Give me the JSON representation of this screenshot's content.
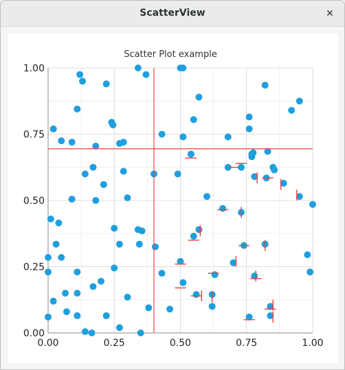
{
  "window": {
    "title": "ScatterView",
    "close_icon": "close-icon"
  },
  "chart_data": {
    "type": "scatter",
    "title": "Scatter Plot example",
    "xlabel": "",
    "ylabel": "",
    "xlim": [
      0,
      1
    ],
    "ylim": [
      0,
      1
    ],
    "xticks": [
      "0.00",
      "0.25",
      "0.50",
      "0.75",
      "1.00"
    ],
    "yticks": [
      "0.00",
      "0.25",
      "0.50",
      "0.75",
      "1.00"
    ],
    "grid": true,
    "point_color": "#209fdf",
    "crosshair_color": "#ee4444",
    "crosshair": {
      "x": 0.4,
      "y": 0.695
    },
    "points": [
      [
        0.12,
        0.975
      ],
      [
        0.13,
        0.95
      ],
      [
        0.22,
        0.94
      ],
      [
        0.34,
        1.0
      ],
      [
        0.37,
        0.975
      ],
      [
        0.5,
        1.0
      ],
      [
        0.51,
        1.0
      ],
      [
        0.57,
        0.89
      ],
      [
        0.82,
        0.935
      ],
      [
        0.11,
        0.845
      ],
      [
        0.55,
        0.805
      ],
      [
        0.76,
        0.815
      ],
      [
        0.92,
        0.84
      ],
      [
        0.95,
        0.875
      ],
      [
        0.02,
        0.77
      ],
      [
        0.24,
        0.795
      ],
      [
        0.245,
        0.785
      ],
      [
        0.43,
        0.75
      ],
      [
        0.76,
        0.77
      ],
      [
        0.05,
        0.725
      ],
      [
        0.09,
        0.72
      ],
      [
        0.18,
        0.705
      ],
      [
        0.27,
        0.715
      ],
      [
        0.285,
        0.72
      ],
      [
        0.51,
        0.74
      ],
      [
        0.68,
        0.74
      ],
      [
        0.54,
        0.675
      ],
      [
        0.77,
        0.675
      ],
      [
        0.77,
        0.665
      ],
      [
        0.83,
        0.685
      ],
      [
        0.775,
        0.68
      ],
      [
        0.17,
        0.625
      ],
      [
        0.14,
        0.6
      ],
      [
        0.285,
        0.61
      ],
      [
        0.4,
        0.6
      ],
      [
        0.49,
        0.6
      ],
      [
        0.68,
        0.625
      ],
      [
        0.73,
        0.625
      ],
      [
        0.78,
        0.59
      ],
      [
        0.825,
        0.585
      ],
      [
        0.85,
        0.625
      ],
      [
        0.855,
        0.615
      ],
      [
        0.89,
        0.565
      ],
      [
        0.21,
        0.56
      ],
      [
        0.09,
        0.505
      ],
      [
        0.18,
        0.5
      ],
      [
        0.3,
        0.51
      ],
      [
        0.6,
        0.515
      ],
      [
        0.95,
        0.515
      ],
      [
        1.0,
        0.485
      ],
      [
        0.01,
        0.43
      ],
      [
        0.04,
        0.415
      ],
      [
        0.66,
        0.47
      ],
      [
        0.73,
        0.455
      ],
      [
        0.25,
        0.395
      ],
      [
        0.34,
        0.39
      ],
      [
        0.355,
        0.385
      ],
      [
        0.57,
        0.39
      ],
      [
        0.55,
        0.365
      ],
      [
        0.03,
        0.335
      ],
      [
        0.27,
        0.335
      ],
      [
        0.345,
        0.335
      ],
      [
        0.405,
        0.325
      ],
      [
        0.74,
        0.33
      ],
      [
        0.82,
        0.335
      ],
      [
        0.0,
        0.285
      ],
      [
        0.05,
        0.285
      ],
      [
        0.98,
        0.295
      ],
      [
        0.5,
        0.27
      ],
      [
        0.7,
        0.265
      ],
      [
        0.0,
        0.23
      ],
      [
        0.25,
        0.245
      ],
      [
        0.11,
        0.23
      ],
      [
        0.43,
        0.225
      ],
      [
        0.63,
        0.22
      ],
      [
        0.78,
        0.215
      ],
      [
        0.99,
        0.23
      ],
      [
        0.2,
        0.195
      ],
      [
        0.17,
        0.175
      ],
      [
        0.51,
        0.19
      ],
      [
        0.065,
        0.15
      ],
      [
        0.11,
        0.15
      ],
      [
        0.3,
        0.135
      ],
      [
        0.56,
        0.145
      ],
      [
        0.62,
        0.145
      ],
      [
        0.02,
        0.12
      ],
      [
        0.38,
        0.095
      ],
      [
        0.46,
        0.09
      ],
      [
        0.62,
        0.1
      ],
      [
        0.84,
        0.1
      ],
      [
        0.0,
        0.06
      ],
      [
        0.07,
        0.08
      ],
      [
        0.11,
        0.065
      ],
      [
        0.22,
        0.065
      ],
      [
        0.76,
        0.06
      ],
      [
        0.84,
        0.065
      ],
      [
        0.27,
        0.02
      ],
      [
        0.14,
        0.005
      ],
      [
        0.165,
        0.0
      ],
      [
        0.35,
        0.0
      ]
    ],
    "error_marks": [
      [
        0.7,
        0.625,
        "h"
      ],
      [
        0.73,
        0.64,
        "h"
      ],
      [
        0.79,
        0.585,
        "v"
      ],
      [
        0.88,
        0.56,
        "v"
      ],
      [
        0.83,
        0.585,
        "h"
      ],
      [
        0.54,
        0.66,
        "h"
      ],
      [
        0.66,
        0.465,
        "h"
      ],
      [
        0.73,
        0.455,
        "v"
      ],
      [
        0.94,
        0.52,
        "v"
      ],
      [
        0.55,
        0.35,
        "h"
      ],
      [
        0.575,
        0.385,
        "v"
      ],
      [
        0.74,
        0.33,
        "h"
      ],
      [
        0.82,
        0.33,
        "v"
      ],
      [
        0.71,
        0.27,
        "v"
      ],
      [
        0.5,
        0.26,
        "h"
      ],
      [
        0.785,
        0.205,
        "h"
      ],
      [
        0.785,
        0.215,
        "v"
      ],
      [
        0.5,
        0.17,
        "h"
      ],
      [
        0.56,
        0.14,
        "h"
      ],
      [
        0.58,
        0.14,
        "v"
      ],
      [
        0.625,
        0.225,
        "h"
      ],
      [
        0.62,
        0.135,
        "v"
      ],
      [
        0.85,
        0.105,
        "v"
      ],
      [
        0.84,
        0.09,
        "h"
      ],
      [
        0.76,
        0.05,
        "h"
      ],
      [
        0.85,
        0.06,
        "v"
      ]
    ]
  }
}
